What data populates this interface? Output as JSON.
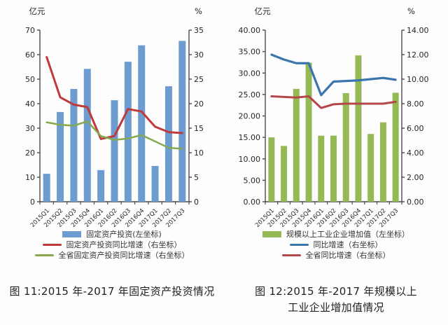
{
  "page": {
    "background": "#fdfdfd",
    "axis_color": "#4a4a4a",
    "tick_text_color": "#262626"
  },
  "chart_data": [
    {
      "type": "combo",
      "caption": "图 11:2015 年-2017 年固定资产投资情况",
      "grid": false,
      "legend_position": "bottom",
      "categories": [
        "2015Q1",
        "2015Q2",
        "2015Q3",
        "2015Q4",
        "2016Q1",
        "2016Q2",
        "2016Q3",
        "2016Q4",
        "2017Q1",
        "2017Q2",
        "2017Q3"
      ],
      "left_axis": {
        "unit": "亿元",
        "min": 0,
        "max": 70,
        "step": 10,
        "decimals": 0
      },
      "right_axis": {
        "unit": "%",
        "min": 0,
        "max": 35,
        "step": 5,
        "decimals": 0
      },
      "series": [
        {
          "name": "固定资产投资(左坐标)",
          "type": "bar",
          "axis": "left",
          "color": "#6D9CD0",
          "values": [
            11.4,
            36.6,
            46.0,
            54.2,
            12.9,
            41.4,
            57.1,
            63.8,
            14.6,
            47.1,
            65.6
          ]
        },
        {
          "name": "固定资产投资同比增速（右坐标）",
          "type": "line",
          "axis": "right",
          "color": "#C0393B",
          "stroke_width": 3,
          "values": [
            29.5,
            21.3,
            19.8,
            19.3,
            12.8,
            13.4,
            18.9,
            18.4,
            15.3,
            14.2,
            14.0
          ]
        },
        {
          "name": "全省固定资产投资同比增速（右坐标）",
          "type": "line",
          "axis": "right",
          "color": "#87A84F",
          "stroke_width": 2.5,
          "values": [
            16.2,
            15.7,
            15.5,
            16.4,
            13.4,
            12.6,
            12.9,
            13.6,
            12.3,
            11.0,
            10.8
          ]
        }
      ]
    },
    {
      "type": "combo",
      "caption": "图 12:2015 年-2017 年规模以上\n工业企业增加值情况",
      "grid": false,
      "legend_position": "bottom",
      "categories": [
        "2015Q1",
        "2015Q2",
        "2015Q3",
        "2015Q4",
        "2016Q1",
        "2016Q2",
        "2016Q3",
        "2016Q4",
        "2017Q1",
        "2017Q2",
        "2017Q3"
      ],
      "left_axis": {
        "unit": "亿元",
        "min": 0,
        "max": 40,
        "step": 5,
        "decimals": 2
      },
      "right_axis": {
        "unit": "%",
        "min": 0,
        "max": 14,
        "step": 2,
        "decimals": 2
      },
      "series": [
        {
          "name": "规模以上工业企业增加值（左坐标）",
          "type": "bar",
          "axis": "left",
          "color": "#95B954",
          "values": [
            15.0,
            13.0,
            26.3,
            32.4,
            15.4,
            15.4,
            25.3,
            34.1,
            15.8,
            18.5,
            25.4
          ]
        },
        {
          "name": "同比增速（右坐标）",
          "type": "line",
          "axis": "right",
          "color": "#3C74AE",
          "stroke_width": 3.2,
          "values": [
            12.0,
            11.6,
            11.3,
            11.3,
            8.7,
            9.8,
            9.85,
            9.9,
            10.0,
            10.1,
            9.95
          ]
        },
        {
          "name": "全省同比增速（右坐标）",
          "type": "line",
          "axis": "right",
          "color": "#B5474B",
          "stroke_width": 3,
          "values": [
            8.6,
            8.55,
            8.5,
            8.6,
            7.65,
            7.95,
            8.0,
            8.0,
            8.0,
            8.0,
            8.15
          ]
        }
      ]
    }
  ]
}
